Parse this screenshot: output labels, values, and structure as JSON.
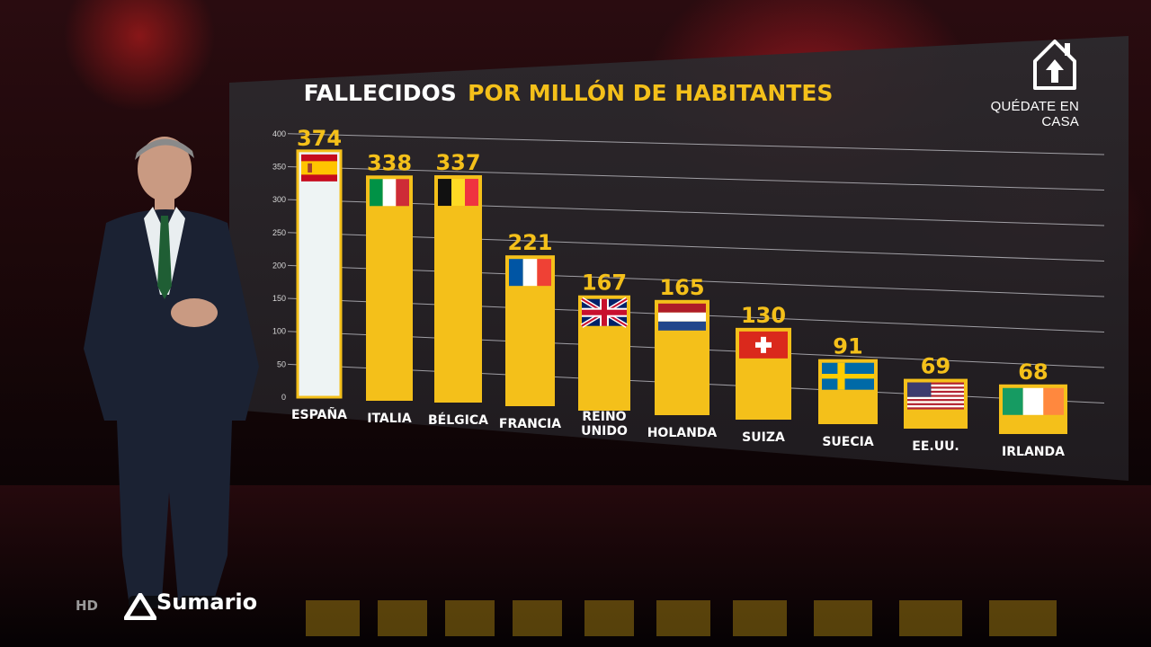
{
  "title": {
    "prefix": "FALLECIDOS",
    "highlight": "POR MILLÓN DE HABITANTES"
  },
  "corner": {
    "label": "QUÉDATE EN CASA",
    "icon": "house-arrow-up-icon"
  },
  "bottom_bar": {
    "hd": "HD",
    "program": "Sumario",
    "logo_icon": "channel-logo-icon"
  },
  "colors": {
    "bar": "#f4c01a",
    "bar_highlight": "#eef4f4",
    "label": "#f4c01a",
    "panel": "#2e2a2e"
  },
  "chart_data": {
    "type": "bar",
    "title": "FALLECIDOS POR MILLÓN DE HABITANTES",
    "ylim": [
      0,
      400
    ],
    "yticks": [
      "400",
      "350",
      "300",
      "250",
      "200",
      "150",
      "100",
      "50",
      "0"
    ],
    "grid": true,
    "categories": [
      "ESPAÑA",
      "ITALIA",
      "BÉLGICA",
      "FRANCIA",
      "REINO UNIDO",
      "HOLANDA",
      "SUIZA",
      "SUECIA",
      "EE.UU.",
      "IRLANDA"
    ],
    "values": [
      374,
      338,
      337,
      221,
      167,
      165,
      130,
      91,
      69,
      68
    ],
    "value_labels": [
      "374",
      "338",
      "337",
      "221",
      "167",
      "165",
      "130",
      "91",
      "69",
      "68"
    ],
    "flags": [
      "spain-flag-icon",
      "italy-flag-icon",
      "belgium-flag-icon",
      "france-flag-icon",
      "uk-flag-icon",
      "netherlands-flag-icon",
      "switzerland-flag-icon",
      "sweden-flag-icon",
      "usa-flag-icon",
      "ireland-flag-icon"
    ],
    "highlighted_category": "ESPAÑA"
  }
}
